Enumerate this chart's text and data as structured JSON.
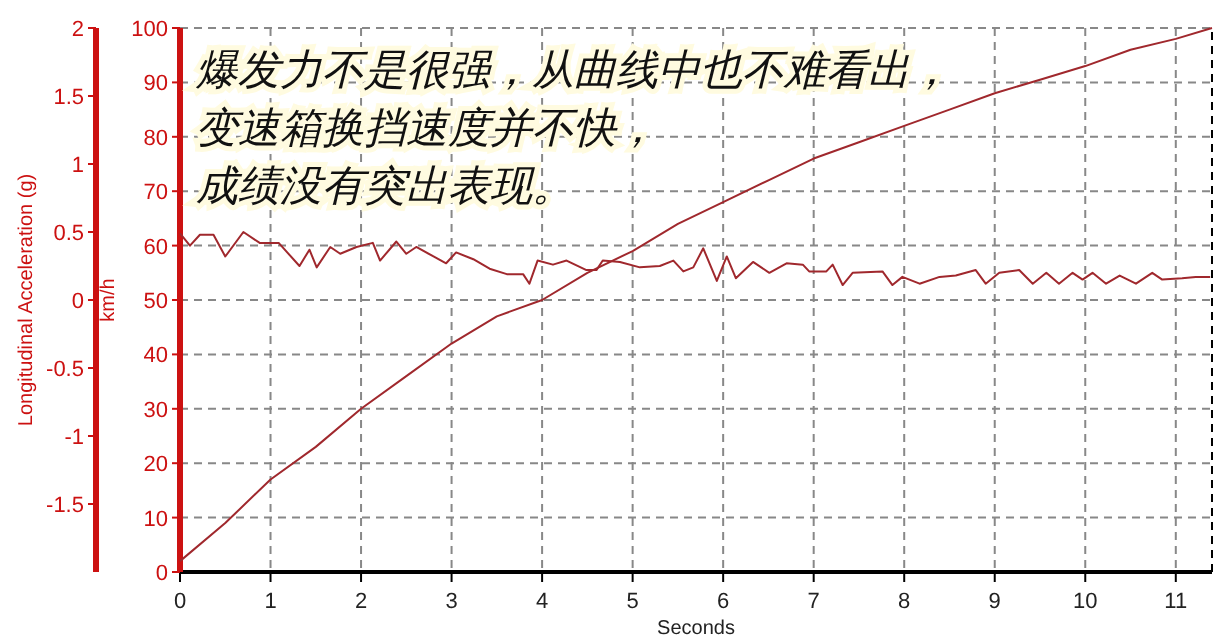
{
  "chart_data": {
    "type": "line",
    "xlabel": "Seconds",
    "ylabel": "Longitudinal Acceleration (g)",
    "y2label": "km/h",
    "grid": true,
    "line_style": "solid",
    "marker": "none",
    "annotations": [
      "爆发力不是很强，从曲线中也不难看出，",
      "变速箱换挡速度并不快，",
      "成绩没有突出表现。"
    ],
    "xlim": [
      0,
      11.4
    ],
    "xticks": [
      0,
      1,
      2,
      3,
      4,
      5,
      6,
      7,
      8,
      9,
      10,
      11
    ],
    "ylim": [
      -2,
      2
    ],
    "yticks": [
      -1.5,
      -1,
      -0.5,
      0,
      0.5,
      1,
      1.5,
      2
    ],
    "y2lim": [
      0,
      100
    ],
    "y2ticks": [
      0,
      10,
      20,
      30,
      40,
      50,
      60,
      70,
      80,
      90,
      100
    ],
    "series": [
      {
        "color": "#a0282d",
        "axis": "y2",
        "x": [
          0,
          0.5,
          1,
          1.5,
          2,
          2.5,
          3,
          3.5,
          4,
          4.5,
          5,
          5.5,
          6,
          6.5,
          7,
          7.5,
          8,
          8.5,
          9,
          9.5,
          10,
          10.5,
          11,
          11.4
        ],
        "values": [
          2,
          9,
          17,
          23,
          30,
          36,
          42,
          47,
          50,
          55,
          59,
          64,
          68,
          72,
          76,
          79,
          82,
          85,
          88,
          90.5,
          93,
          96,
          98,
          100
        ]
      },
      {
        "color": "#a0282d",
        "x": [
          0,
          0.11,
          0.22,
          0.37,
          0.5,
          0.7,
          0.88,
          1.09,
          1.32,
          1.43,
          1.51,
          1.66,
          1.77,
          1.95,
          2.13,
          2.21,
          2.39,
          2.5,
          2.61,
          2.8,
          2.94,
          3.05,
          3.24,
          3.42,
          3.61,
          3.79,
          3.86,
          3.95,
          4.12,
          4.27,
          4.49,
          4.6,
          4.67,
          4.86,
          5.08,
          5.3,
          5.45,
          5.56,
          5.67,
          5.78,
          5.93,
          6.04,
          6.14,
          6.33,
          6.51,
          6.7,
          6.88,
          6.95,
          7.14,
          7.21,
          7.32,
          7.43,
          7.76,
          7.87,
          7.98,
          8.17,
          8.39,
          8.57,
          8.79,
          8.9,
          9.05,
          9.27,
          9.42,
          9.57,
          9.71,
          9.86,
          9.97,
          10.08,
          10.23,
          10.38,
          10.56,
          10.74,
          10.85,
          11.07,
          11.22,
          11.38
        ],
        "values": [
          0.49,
          0.4,
          0.48,
          0.48,
          0.32,
          0.5,
          0.42,
          0.42,
          0.25,
          0.37,
          0.24,
          0.39,
          0.34,
          0.39,
          0.42,
          0.29,
          0.43,
          0.34,
          0.39,
          0.32,
          0.27,
          0.35,
          0.3,
          0.23,
          0.19,
          0.19,
          0.12,
          0.29,
          0.26,
          0.29,
          0.22,
          0.22,
          0.29,
          0.28,
          0.24,
          0.25,
          0.29,
          0.21,
          0.24,
          0.38,
          0.14,
          0.32,
          0.16,
          0.28,
          0.2,
          0.27,
          0.26,
          0.21,
          0.21,
          0.26,
          0.11,
          0.2,
          0.21,
          0.11,
          0.17,
          0.12,
          0.17,
          0.18,
          0.22,
          0.12,
          0.2,
          0.22,
          0.12,
          0.2,
          0.12,
          0.2,
          0.15,
          0.2,
          0.12,
          0.18,
          0.12,
          0.2,
          0.15,
          0.16,
          0.17,
          0.17
        ]
      }
    ]
  }
}
